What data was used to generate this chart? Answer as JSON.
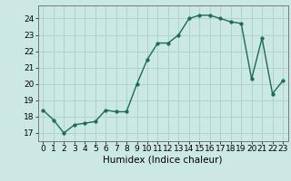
{
  "x": [
    0,
    1,
    2,
    3,
    4,
    5,
    6,
    7,
    8,
    9,
    10,
    11,
    12,
    13,
    14,
    15,
    16,
    17,
    18,
    19,
    20,
    21,
    22,
    23
  ],
  "y": [
    18.4,
    17.8,
    17.0,
    17.5,
    17.6,
    17.7,
    18.4,
    18.3,
    18.3,
    20.0,
    21.5,
    22.5,
    22.5,
    23.0,
    24.0,
    24.2,
    24.2,
    24.0,
    23.8,
    23.7,
    20.3,
    22.8,
    19.4,
    20.2
  ],
  "line_color": "#1a6b5a",
  "marker_color": "#1a6b5a",
  "bg_color": "#cce8e4",
  "grid_color": "#aacfcc",
  "xlabel": "Humidex (Indice chaleur)",
  "ylim": [
    16.5,
    24.8
  ],
  "xlim": [
    -0.5,
    23.5
  ],
  "yticks": [
    17,
    18,
    19,
    20,
    21,
    22,
    23,
    24
  ],
  "xticks": [
    0,
    1,
    2,
    3,
    4,
    5,
    6,
    7,
    8,
    9,
    10,
    11,
    12,
    13,
    14,
    15,
    16,
    17,
    18,
    19,
    20,
    21,
    22,
    23
  ],
  "tick_fontsize": 6.5,
  "xlabel_fontsize": 7.5,
  "linewidth": 1.0,
  "markersize": 2.5
}
